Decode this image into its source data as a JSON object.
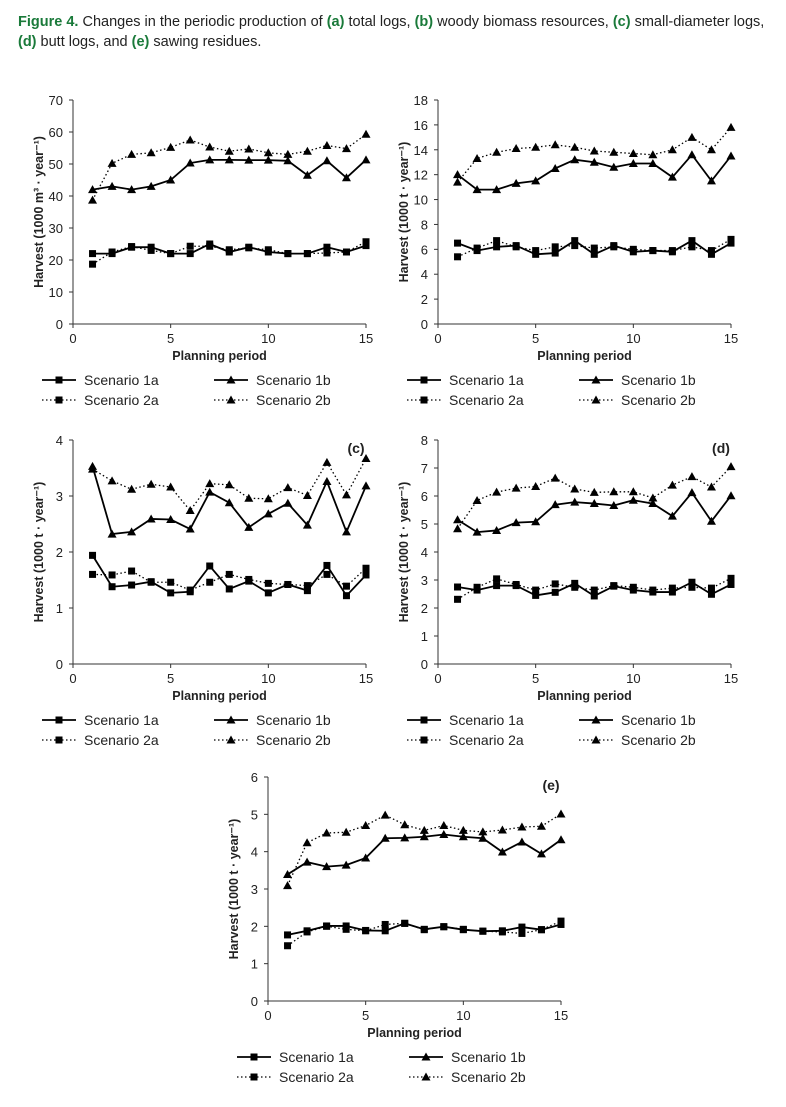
{
  "caption": {
    "figure_label": "Figure 4.",
    "t1": " Changes in the periodic production of ",
    "a": "(a)",
    "t2": " total logs, ",
    "b": "(b)",
    "t3": " woody biomass resources, ",
    "c": "(c)",
    "t4": " small-diameter logs, ",
    "d": "(d)",
    "t5": " butt logs, and ",
    "e": "(e)",
    "t6": " sawing residues."
  },
  "colors": {
    "accent": "#1a7a3a",
    "line": "#000000"
  },
  "chart_data": [
    {
      "type": "line",
      "panel_label": "",
      "xlabel": "Planning period",
      "ylabel": "Harvest (1000 m³ · year⁻¹)",
      "xlim": [
        0,
        15
      ],
      "ylim": [
        0,
        70
      ],
      "xticks": [
        0,
        5,
        10,
        15
      ],
      "yticks": [
        0,
        10,
        20,
        30,
        40,
        50,
        60,
        70
      ],
      "x": [
        1,
        2,
        3,
        4,
        5,
        6,
        7,
        8,
        9,
        10,
        11,
        12,
        13,
        14,
        15
      ],
      "series": [
        {
          "name": "Scenario 1a",
          "marker": "square",
          "dash": "solid",
          "values": [
            22,
            22,
            24,
            24,
            22,
            22,
            25,
            22.5,
            24,
            22.5,
            22,
            22,
            24,
            22.5,
            24.5
          ]
        },
        {
          "name": "Scenario 1b",
          "marker": "triangle",
          "dash": "solid",
          "values": [
            42,
            43,
            42,
            43,
            45,
            50.3,
            51.3,
            51.3,
            51.2,
            51.2,
            51,
            46.5,
            51,
            45.7,
            51.3
          ]
        },
        {
          "name": "Scenario 2a",
          "marker": "square",
          "dash": "dotted",
          "values": [
            18.7,
            22.5,
            24.2,
            23,
            22,
            24.3,
            24.3,
            23.2,
            23.8,
            23.2,
            22,
            22,
            22.2,
            22.5,
            25.7
          ]
        },
        {
          "name": "Scenario 2b",
          "marker": "triangle",
          "dash": "dotted",
          "values": [
            38.7,
            50.2,
            53,
            53.5,
            55.2,
            57.5,
            55.3,
            54,
            54.7,
            53.5,
            53,
            54,
            55.8,
            54.8,
            59.3
          ]
        }
      ]
    },
    {
      "type": "line",
      "panel_label": "",
      "xlabel": "Planning period",
      "ylabel": "Harvest (1000 t · year⁻¹)",
      "xlim": [
        0,
        15
      ],
      "ylim": [
        0,
        18
      ],
      "xticks": [
        0,
        5,
        10,
        15
      ],
      "yticks": [
        0,
        2,
        4,
        6,
        8,
        10,
        12,
        14,
        16,
        18
      ],
      "x": [
        1,
        2,
        3,
        4,
        5,
        6,
        7,
        8,
        9,
        10,
        11,
        12,
        13,
        14,
        15
      ],
      "series": [
        {
          "name": "Scenario 1a",
          "marker": "square",
          "dash": "solid",
          "values": [
            6.5,
            5.9,
            6.2,
            6.3,
            5.6,
            5.7,
            6.7,
            5.6,
            6.3,
            5.8,
            5.9,
            5.8,
            6.7,
            5.6,
            6.5
          ]
        },
        {
          "name": "Scenario 1b",
          "marker": "triangle",
          "dash": "solid",
          "values": [
            12.0,
            10.8,
            10.8,
            11.3,
            11.5,
            12.5,
            13.2,
            13.0,
            12.6,
            12.9,
            12.9,
            11.8,
            13.6,
            11.5,
            13.5
          ]
        },
        {
          "name": "Scenario 2a",
          "marker": "square",
          "dash": "dotted",
          "values": [
            5.4,
            6.1,
            6.7,
            6.2,
            5.9,
            6.2,
            6.3,
            6.1,
            6.2,
            6.0,
            5.9,
            5.9,
            6.2,
            5.9,
            6.8
          ]
        },
        {
          "name": "Scenario 2b",
          "marker": "triangle",
          "dash": "dotted",
          "values": [
            11.4,
            13.3,
            13.8,
            14.1,
            14.2,
            14.4,
            14.2,
            13.9,
            13.8,
            13.7,
            13.6,
            14.0,
            15.0,
            14.0,
            15.8
          ]
        }
      ]
    },
    {
      "type": "line",
      "panel_label": "(c)",
      "xlabel": "Planning period",
      "ylabel": "Harvest (1000 t · year⁻¹)",
      "xlim": [
        0,
        15
      ],
      "ylim": [
        0,
        4
      ],
      "xticks": [
        0,
        5,
        10,
        15
      ],
      "yticks": [
        0,
        1,
        2,
        3,
        4
      ],
      "x": [
        1,
        2,
        3,
        4,
        5,
        6,
        7,
        8,
        9,
        10,
        11,
        12,
        13,
        14,
        15
      ],
      "series": [
        {
          "name": "Scenario 1a",
          "marker": "square",
          "dash": "solid",
          "values": [
            1.94,
            1.38,
            1.41,
            1.47,
            1.27,
            1.29,
            1.75,
            1.34,
            1.48,
            1.27,
            1.42,
            1.31,
            1.76,
            1.22,
            1.59
          ]
        },
        {
          "name": "Scenario 1b",
          "marker": "triangle",
          "dash": "solid",
          "values": [
            3.53,
            2.32,
            2.36,
            2.59,
            2.58,
            2.41,
            3.07,
            2.88,
            2.44,
            2.68,
            2.87,
            2.48,
            3.26,
            2.36,
            3.18
          ]
        },
        {
          "name": "Scenario 2a",
          "marker": "square",
          "dash": "dotted",
          "values": [
            1.6,
            1.59,
            1.66,
            1.46,
            1.46,
            1.32,
            1.46,
            1.6,
            1.51,
            1.44,
            1.42,
            1.4,
            1.6,
            1.39,
            1.71
          ]
        },
        {
          "name": "Scenario 2b",
          "marker": "triangle",
          "dash": "dotted",
          "values": [
            3.48,
            3.27,
            3.12,
            3.21,
            3.16,
            2.74,
            3.22,
            3.2,
            2.96,
            2.95,
            3.15,
            3.01,
            3.6,
            3.02,
            3.67
          ]
        }
      ]
    },
    {
      "type": "line",
      "panel_label": "(d)",
      "xlabel": "Planning period",
      "ylabel": "Harvest (1000 t · year⁻¹)",
      "xlim": [
        0,
        15
      ],
      "ylim": [
        0,
        8
      ],
      "xticks": [
        0,
        5,
        10,
        15
      ],
      "yticks": [
        0,
        1,
        2,
        3,
        4,
        5,
        6,
        7,
        8
      ],
      "x": [
        1,
        2,
        3,
        4,
        5,
        6,
        7,
        8,
        9,
        10,
        11,
        12,
        13,
        14,
        15
      ],
      "series": [
        {
          "name": "Scenario 1a",
          "marker": "square",
          "dash": "solid",
          "values": [
            2.75,
            2.64,
            2.8,
            2.8,
            2.45,
            2.56,
            2.88,
            2.43,
            2.78,
            2.64,
            2.57,
            2.57,
            2.92,
            2.49,
            2.84
          ]
        },
        {
          "name": "Scenario 1b",
          "marker": "triangle",
          "dash": "solid",
          "values": [
            5.15,
            4.71,
            4.77,
            5.05,
            5.08,
            5.69,
            5.78,
            5.73,
            5.66,
            5.85,
            5.73,
            5.28,
            6.12,
            5.1,
            6.01
          ]
        },
        {
          "name": "Scenario 2a",
          "marker": "square",
          "dash": "dotted",
          "values": [
            2.31,
            2.74,
            3.04,
            2.84,
            2.64,
            2.86,
            2.74,
            2.64,
            2.8,
            2.74,
            2.64,
            2.71,
            2.74,
            2.71,
            3.06
          ]
        },
        {
          "name": "Scenario 2b",
          "marker": "triangle",
          "dash": "dotted",
          "values": [
            4.83,
            5.84,
            6.14,
            6.28,
            6.34,
            6.64,
            6.25,
            6.13,
            6.15,
            6.15,
            5.93,
            6.39,
            6.69,
            6.32,
            7.05
          ]
        }
      ]
    },
    {
      "type": "line",
      "panel_label": "(e)",
      "xlabel": "Planning period",
      "ylabel": "Harvest (1000 t · year⁻¹)",
      "xlim": [
        0,
        15
      ],
      "ylim": [
        0,
        6
      ],
      "xticks": [
        0,
        5,
        10,
        15
      ],
      "yticks": [
        0,
        1,
        2,
        3,
        4,
        5,
        6
      ],
      "x": [
        1,
        2,
        3,
        4,
        5,
        6,
        7,
        8,
        9,
        10,
        11,
        12,
        13,
        14,
        15
      ],
      "series": [
        {
          "name": "Scenario 1a",
          "marker": "square",
          "dash": "solid",
          "values": [
            1.77,
            1.88,
            2.01,
            2.01,
            1.89,
            1.88,
            2.08,
            1.92,
            1.99,
            1.91,
            1.87,
            1.88,
            1.98,
            1.91,
            2.05
          ]
        },
        {
          "name": "Scenario 1b",
          "marker": "triangle",
          "dash": "solid",
          "values": [
            3.39,
            3.72,
            3.6,
            3.64,
            3.83,
            4.36,
            4.37,
            4.4,
            4.46,
            4.4,
            4.36,
            3.99,
            4.26,
            3.94,
            4.32
          ]
        },
        {
          "name": "Scenario 2a",
          "marker": "square",
          "dash": "dotted",
          "values": [
            1.48,
            1.85,
            2.0,
            1.92,
            1.88,
            2.05,
            2.08,
            1.91,
            1.99,
            1.92,
            1.87,
            1.85,
            1.81,
            1.91,
            2.14
          ]
        },
        {
          "name": "Scenario 2b",
          "marker": "triangle",
          "dash": "dotted",
          "values": [
            3.09,
            4.24,
            4.5,
            4.52,
            4.7,
            4.98,
            4.72,
            4.57,
            4.7,
            4.57,
            4.53,
            4.58,
            4.66,
            4.68,
            5.01
          ]
        }
      ]
    }
  ]
}
